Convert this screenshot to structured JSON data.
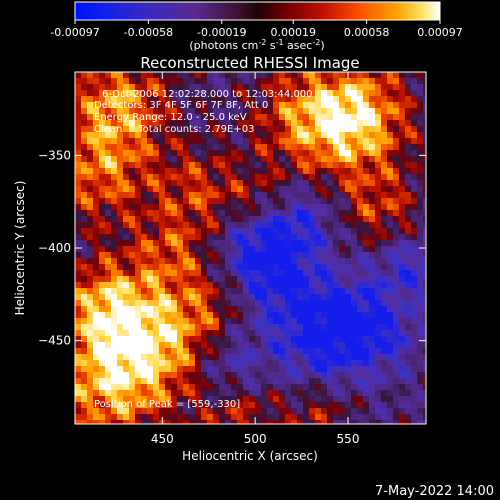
{
  "chart_data": {
    "type": "heatmap",
    "title": "Reconstructed RHESSI Image",
    "xlabel": "Heliocentric X (arcsec)",
    "ylabel": "Heliocentric Y (arcsec)",
    "xlim": [
      403,
      592
    ],
    "ylim": [
      -495,
      -305
    ],
    "x_ticks": [
      450,
      500,
      550
    ],
    "y_ticks": [
      -350,
      -400,
      -450
    ],
    "colorbar": {
      "range": [
        -0.00097,
        0.00097
      ],
      "tick_values": [
        -0.00097,
        -0.00058,
        -0.00019,
        0.00019,
        0.00058,
        0.00097
      ],
      "tick_labels": [
        "-0.00097",
        "-0.00058",
        "-0.00019",
        "0.00019",
        "0.00058",
        "0.00097"
      ],
      "units_prefix": "(photons cm",
      "units_exp1": "-2",
      "units_mid1": " s",
      "units_exp2": "-1",
      "units_mid2": " asec",
      "units_exp3": "-2",
      "units_suffix": ")"
    },
    "annotations": [
      "6-Oct-2006 12:02:28.000 to 12:03:44.000",
      "Detectors: 3F 4F 5F 6F 7F 8F, Att 0",
      "Energy Range: 12.0 - 25.0 keV",
      "Clean     Total counts: 2.79E+03"
    ],
    "peak_label": "Position of Peak = [559,-330]",
    "peak": [
      559,
      -330
    ]
  },
  "footer": {
    "timestamp": "7-May-2022 14:00"
  },
  "colors": {
    "background": "#000000",
    "foreground": "#ffffff"
  }
}
